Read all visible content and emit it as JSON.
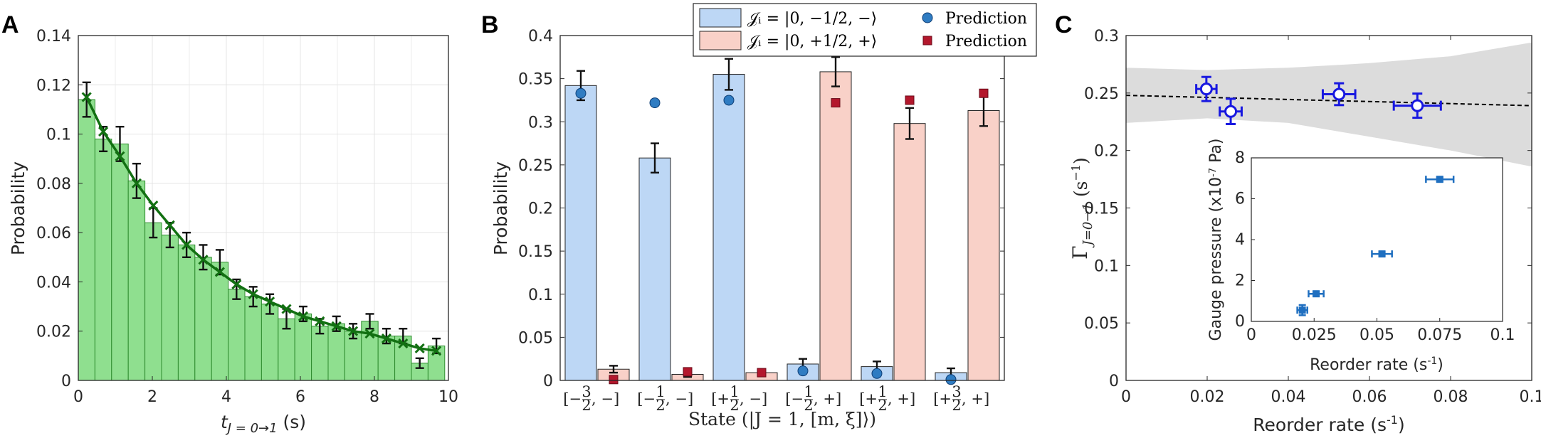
{
  "panels": {
    "a": "A",
    "b": "B",
    "c": "C"
  },
  "chart_data": [
    {
      "type": "bar",
      "panel": "A",
      "xlabel_main": "t",
      "xlabel_sub": "J = 0→1",
      "xlabel_unit": " (s)",
      "ylabel": "Probability",
      "xlim": [
        0,
        10
      ],
      "ylim": [
        0,
        0.14
      ],
      "xticks": [
        "0",
        "2",
        "4",
        "6",
        "8",
        "10"
      ],
      "yticks": [
        "0",
        "0.02",
        "0.04",
        "0.06",
        "0.08",
        "0.1",
        "0.12",
        "0.14"
      ],
      "grid": true,
      "bar_width": 0.45,
      "bars_x": [
        0.225,
        0.675,
        1.125,
        1.575,
        2.025,
        2.475,
        2.925,
        3.375,
        3.825,
        4.275,
        4.725,
        5.175,
        5.625,
        6.075,
        6.525,
        6.975,
        7.425,
        7.875,
        8.325,
        8.775,
        9.225,
        9.675
      ],
      "bars_y": [
        0.114,
        0.098,
        0.096,
        0.081,
        0.064,
        0.059,
        0.055,
        0.05,
        0.048,
        0.037,
        0.034,
        0.031,
        0.025,
        0.027,
        0.022,
        0.023,
        0.02,
        0.024,
        0.018,
        0.018,
        0.007,
        0.014
      ],
      "bars_err": [
        0.007,
        0.005,
        0.007,
        0.007,
        0.006,
        0.005,
        0.005,
        0.005,
        0.005,
        0.004,
        0.004,
        0.004,
        0.004,
        0.003,
        0.003,
        0.003,
        0.003,
        0.003,
        0.003,
        0.003,
        0.002,
        0.003
      ],
      "fit_y": [
        0.115,
        0.101,
        0.091,
        0.08,
        0.071,
        0.063,
        0.055,
        0.049,
        0.044,
        0.039,
        0.035,
        0.032,
        0.029,
        0.026,
        0.024,
        0.022,
        0.02,
        0.019,
        0.017,
        0.015,
        0.013,
        0.012
      ],
      "colors": {
        "bar": "#8fdf8f",
        "bar_edge": "#2e8b2e",
        "fit": "#127012"
      }
    },
    {
      "type": "bar",
      "panel": "B",
      "xlabel": "State (|J = 1, [m, ξ]⟩)",
      "ylabel": "Probability",
      "ylim": [
        0,
        0.4
      ],
      "yticks": [
        "0",
        "0.05",
        "0.1",
        "0.15",
        "0.2",
        "0.25",
        "0.3",
        "0.35",
        "0.4"
      ],
      "categories": [
        "[−3/2, −⟩",
        "[−1/2, −⟩",
        "[+1/2, −⟩",
        "[−1/2, +⟩",
        "[+1/2, +⟩",
        "[+3/2, +⟩"
      ],
      "cat_num": [
        "3",
        "1",
        "1",
        "1",
        "1",
        "3"
      ],
      "cat_sign": [
        "[−",
        "[−",
        "[+",
        "[−",
        "[+",
        "[+"
      ],
      "cat_tail": [
        ", −]",
        ", −]",
        ", −]",
        ", +]",
        ", +]",
        ", +]"
      ],
      "legend_placement": "top",
      "legend": [
        {
          "label": "𝒥ᵢ = |0, −1/2, −⟩",
          "swatch": "bar-blue"
        },
        {
          "label": "Prediction",
          "swatch": "circle"
        },
        {
          "label": "𝒥ᵢ = |0, +1/2, +⟩",
          "swatch": "bar-red"
        },
        {
          "label": "Prediction",
          "swatch": "square"
        }
      ],
      "series": [
        {
          "values": [
            0.342,
            0.258,
            0.355,
            0.019,
            0.016,
            0.009
          ],
          "err": [
            0.017,
            0.017,
            0.018,
            0.006,
            0.006,
            0.005
          ],
          "prediction": [
            0.333,
            0.322,
            0.325,
            0.011,
            0.008,
            0.001
          ]
        },
        {
          "values": [
            0.013,
            0.007,
            0.009,
            0.358,
            0.298,
            0.313
          ],
          "err": [
            0.004,
            0.003,
            0.003,
            0.017,
            0.018,
            0.018
          ],
          "prediction": [
            0.001,
            0.01,
            0.009,
            0.322,
            0.325,
            0.333
          ]
        }
      ],
      "colors": {
        "blue_bar": "#bdd7f5",
        "red_bar": "#f9d1c8",
        "blue_pt": "#2f7cc2",
        "red_pt": "#b3172c"
      }
    },
    {
      "type": "scatter",
      "panel": "C",
      "xlabel": "Reorder rate (s",
      "xlabel_sup": "-1",
      "xlabel_end": ")",
      "ylabel_main": "Γ",
      "ylabel_sub": "J=0→1",
      "ylabel_unit": " (s",
      "ylabel_sup": "−1",
      "ylabel_end": ")",
      "xlim": [
        0,
        0.1
      ],
      "ylim": [
        0,
        0.3
      ],
      "xticks": [
        "0",
        "0.02",
        "0.04",
        "0.06",
        "0.08",
        "0.1"
      ],
      "yticks": [
        "0",
        "0.05",
        "0.1",
        "0.15",
        "0.2",
        "0.25",
        "0.3"
      ],
      "points": [
        {
          "x": 0.0198,
          "y": 0.2535,
          "xerr": 0.0025,
          "yerr": 0.0105
        },
        {
          "x": 0.0258,
          "y": 0.234,
          "xerr": 0.0027,
          "yerr": 0.011
        },
        {
          "x": 0.0525,
          "y": 0.249,
          "xerr": 0.004,
          "yerr": 0.0095
        },
        {
          "x": 0.0718,
          "y": 0.239,
          "xerr": 0.0058,
          "yerr": 0.0105
        }
      ],
      "fit": {
        "x": [
          0,
          0.1
        ],
        "y": [
          0.248,
          0.239
        ]
      },
      "band_upper": [
        [
          0,
          0.272
        ],
        [
          0.02,
          0.27
        ],
        [
          0.04,
          0.272
        ],
        [
          0.06,
          0.276
        ],
        [
          0.08,
          0.282
        ],
        [
          0.1,
          0.294
        ]
      ],
      "band_lower": [
        [
          0,
          0.224
        ],
        [
          0.02,
          0.228
        ],
        [
          0.04,
          0.224
        ],
        [
          0.06,
          0.212
        ],
        [
          0.08,
          0.2
        ],
        [
          0.1,
          0.186
        ]
      ],
      "colors": {
        "points": "#1818e0",
        "band": "#dcdcdc",
        "fit": "#000000"
      },
      "inset": {
        "type": "scatter",
        "xlabel": "Reorder rate (s",
        "xlabel_sup": "-1",
        "xlabel_end": ")",
        "ylabel": "Gauge pressure (x10",
        "ylabel_sup": "-7",
        "ylabel_end": " Pa)",
        "xlim": [
          0,
          0.1
        ],
        "ylim": [
          0,
          8
        ],
        "xticks": [
          "0",
          "0.025",
          "0.05",
          "0.075",
          "0.1"
        ],
        "yticks": [
          "0",
          "2",
          "4",
          "6",
          "8"
        ],
        "points": [
          {
            "x": 0.0203,
            "y": 0.55,
            "xerr": 0.002,
            "yerr": 0.25
          },
          {
            "x": 0.0258,
            "y": 1.35,
            "xerr": 0.003,
            "yerr": 0.1
          },
          {
            "x": 0.052,
            "y": 3.3,
            "xerr": 0.004,
            "yerr": 0.1
          },
          {
            "x": 0.075,
            "y": 6.95,
            "xerr": 0.0055,
            "yerr": 0.1
          }
        ],
        "color": "#1f6fc0"
      }
    }
  ]
}
